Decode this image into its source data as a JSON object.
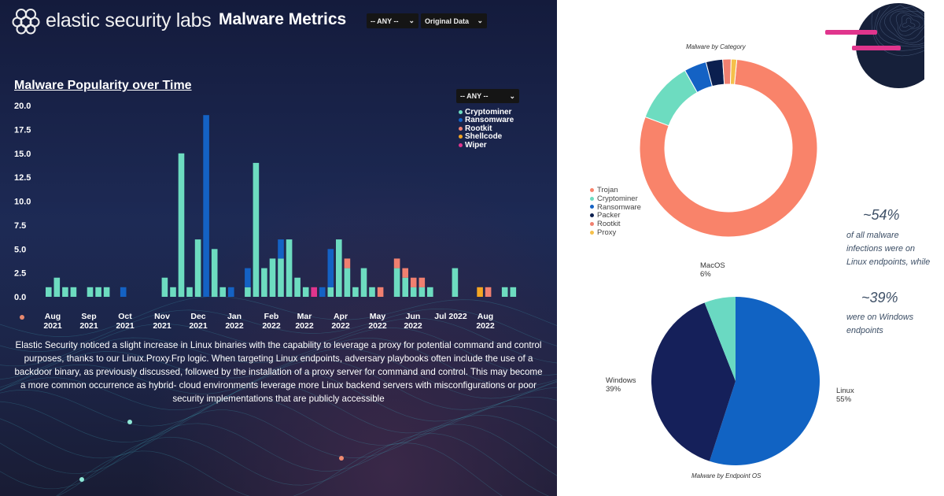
{
  "header": {
    "logo_text": "elastic security labs",
    "title": "Malware Metrics",
    "filter_any": "-- ANY --",
    "filter_data": "Original Data"
  },
  "popularity": {
    "title": "Malware Popularity over Time",
    "legend_filter": "-- ANY --",
    "description": "Elastic Security noticed a slight increase in Linux binaries with the capability to leverage a proxy for potential command and control purposes, thanks to our Linux.Proxy.Frp logic. When targeting Linux endpoints, adversary playbooks often include the use of a backdoor binary, as previously discussed, followed by the installation of a proxy server for command and control. This may become a more common occurrence as hybrid- cloud environments leverage more Linux backend servers with misconfigurations or poor security implementations that are publicly accessible"
  },
  "category_pie": {
    "title": "Malware by Category"
  },
  "os_pie": {
    "title": "Malware by Endpoint OS"
  },
  "stats": {
    "linux_pct": "~54%",
    "linux_text": [
      "of all malware",
      "infections were on",
      "Linux endpoints, while"
    ],
    "windows_pct": "~39%",
    "windows_text": [
      "were on Windows",
      "endpoints"
    ]
  },
  "colors": {
    "Cryptominer": "#6ddcc0",
    "Ransomware": "#1462c4",
    "Rootkit": "#f08070",
    "Shellcode": "#f5a623",
    "Wiper": "#e0358d",
    "Trojan": "#f9836a",
    "Packer": "#0b1f4f",
    "Proxy": "#f5c04a",
    "Windows": "#15205a",
    "Linux": "#1163c3",
    "MacOS": "#6ad9c2"
  },
  "chart_data": [
    {
      "type": "bar",
      "stacked": true,
      "title": "Malware Popularity over Time",
      "xlabel": "",
      "ylabel": "",
      "ylim": [
        0,
        20
      ],
      "yticks": [
        "0.0",
        "2.5",
        "5.0",
        "7.5",
        "10.0",
        "12.5",
        "15.0",
        "17.5",
        "20.0"
      ],
      "x_tick_labels": [
        [
          "Aug",
          "2021"
        ],
        [
          "Sep",
          "2021"
        ],
        [
          "Oct",
          "2021"
        ],
        [
          "Nov",
          "2021"
        ],
        [
          "Dec",
          "2021"
        ],
        [
          "Jan",
          "2022"
        ],
        [
          "Feb",
          "2022"
        ],
        [
          "Mar",
          "2022"
        ],
        [
          "Apr",
          "2022"
        ],
        [
          "May",
          "2022"
        ],
        [
          "Jun",
          "2022"
        ],
        [
          "Jul 2022",
          ""
        ],
        [
          "Aug",
          "2022"
        ]
      ],
      "legend_position": "top-right",
      "series": [
        {
          "name": "Cryptominer",
          "values": [
            1,
            2,
            1,
            1,
            0,
            1,
            1,
            1,
            0,
            0,
            0,
            0,
            0,
            0,
            2,
            1,
            15,
            1,
            6,
            0,
            5,
            1,
            0,
            0,
            1,
            14,
            3,
            4,
            4,
            6,
            2,
            1,
            0,
            0,
            1,
            6,
            3,
            1,
            3,
            1,
            0,
            0,
            3,
            2,
            1,
            1,
            1,
            0,
            0,
            3,
            0,
            0,
            0,
            0,
            0,
            1,
            1
          ]
        },
        {
          "name": "Ransomware",
          "values": [
            0,
            0,
            0,
            0,
            0,
            0,
            0,
            0,
            0,
            1,
            0,
            0,
            0,
            0,
            0,
            0,
            0,
            0,
            0,
            19,
            0,
            0,
            1,
            0,
            2,
            0,
            0,
            0,
            2,
            0,
            0,
            0,
            0,
            1,
            4,
            0,
            0,
            0,
            0,
            0,
            0,
            0,
            0,
            0,
            0,
            0,
            0,
            0,
            0,
            0,
            0,
            0,
            0,
            0,
            0,
            0,
            0
          ]
        },
        {
          "name": "Rootkit",
          "values": [
            0,
            0,
            0,
            0,
            0,
            0,
            0,
            0,
            0,
            0,
            0,
            0,
            0,
            0,
            0,
            0,
            0,
            0,
            0,
            0,
            0,
            0,
            0,
            0,
            0,
            0,
            0,
            0,
            0,
            0,
            0,
            0,
            0,
            0,
            0,
            0,
            1,
            0,
            0,
            0,
            1,
            0,
            1,
            1,
            1,
            1,
            0,
            0,
            0,
            0,
            0,
            0,
            0,
            1,
            0,
            0,
            0
          ]
        },
        {
          "name": "Shellcode",
          "values": [
            0,
            0,
            0,
            0,
            0,
            0,
            0,
            0,
            0,
            0,
            0,
            0,
            0,
            0,
            0,
            0,
            0,
            0,
            0,
            0,
            0,
            0,
            0,
            0,
            0,
            0,
            0,
            0,
            0,
            0,
            0,
            0,
            0,
            0,
            0,
            0,
            0,
            0,
            0,
            0,
            0,
            0,
            0,
            0,
            0,
            0,
            0,
            0,
            0,
            0,
            0,
            0,
            1,
            0,
            0,
            0,
            0
          ]
        },
        {
          "name": "Wiper",
          "values": [
            0,
            0,
            0,
            0,
            0,
            0,
            0,
            0,
            0,
            0,
            0,
            0,
            0,
            0,
            0,
            0,
            0,
            0,
            0,
            0,
            0,
            0,
            0,
            0,
            0,
            0,
            0,
            0,
            0,
            0,
            0,
            0,
            1,
            0,
            0,
            0,
            0,
            0,
            0,
            0,
            0,
            0,
            0,
            0,
            0,
            0,
            0,
            0,
            0,
            0,
            0,
            0,
            0,
            0,
            0,
            0,
            0
          ]
        }
      ]
    },
    {
      "type": "pie",
      "title": "Malware by Category",
      "donut": true,
      "legend_position": "left",
      "categories": [
        "Trojan",
        "Cryptominer",
        "Ransomware",
        "Packer",
        "Rootkit",
        "Proxy"
      ],
      "values": [
        78,
        11,
        4,
        3,
        1.5,
        1
      ]
    },
    {
      "type": "pie",
      "title": "Malware by Endpoint OS",
      "categories": [
        "Linux",
        "Windows",
        "MacOS"
      ],
      "values": [
        55,
        39,
        6
      ],
      "labels": [
        "55%",
        "39%",
        "6%"
      ]
    }
  ]
}
